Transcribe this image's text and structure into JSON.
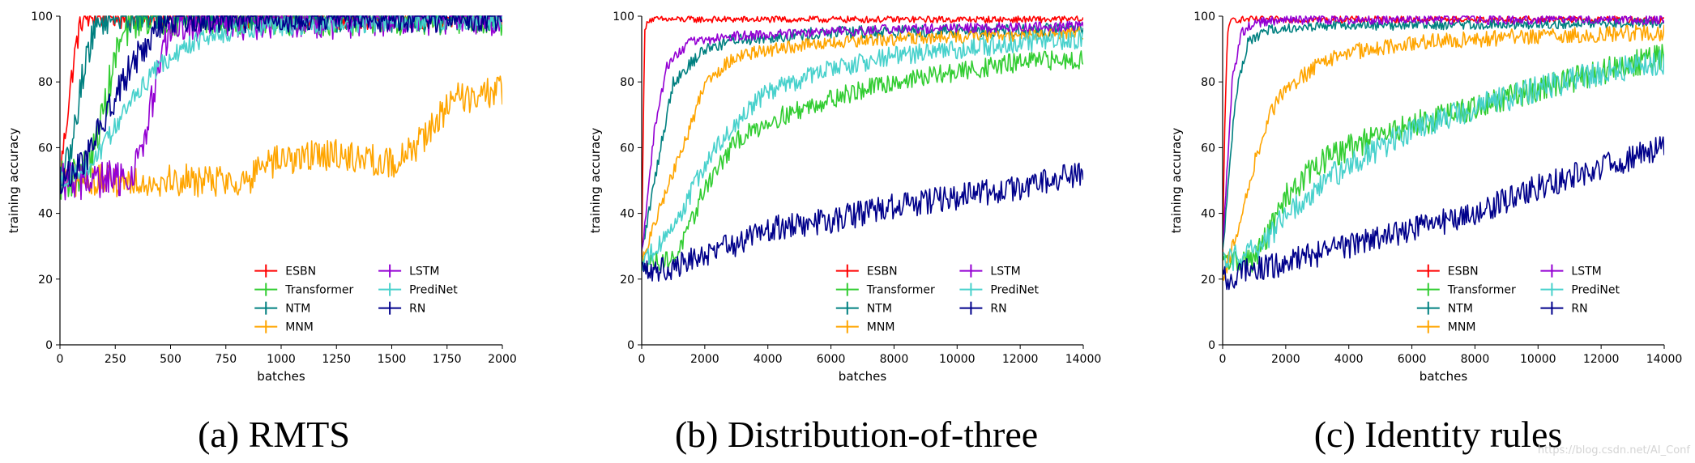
{
  "figure": {
    "watermark": "https://blog.csdn.net/AI_Conf"
  },
  "chart_data": [
    {
      "type": "line",
      "caption": "(a) RMTS",
      "xlabel": "batches",
      "ylabel": "training accuracy",
      "xlim": [
        0,
        2000
      ],
      "ylim": [
        0,
        100
      ],
      "xticks": [
        0,
        250,
        500,
        750,
        1000,
        1250,
        1500,
        1750,
        2000
      ],
      "yticks": [
        0,
        20,
        40,
        60,
        80,
        100
      ],
      "legend": {
        "placement": "bottom-right",
        "columns": 2,
        "entries": [
          "ESBN",
          "Transformer",
          "NTM",
          "MNM",
          "LSTM",
          "PrediNet",
          "RN"
        ]
      },
      "series": [
        {
          "name": "ESBN",
          "color": "#ff0000",
          "noise": 4,
          "x": [
            0,
            25,
            50,
            75,
            100,
            150,
            2000
          ],
          "y": [
            52,
            65,
            80,
            92,
            99,
            100,
            100
          ]
        },
        {
          "name": "Transformer",
          "color": "#32cd32",
          "noise": 6,
          "x": [
            0,
            100,
            150,
            200,
            260,
            320,
            360,
            2000
          ],
          "y": [
            50,
            52,
            58,
            72,
            90,
            98,
            100,
            100
          ]
        },
        {
          "name": "NTM",
          "color": "#008080",
          "noise": 5,
          "x": [
            0,
            50,
            80,
            110,
            150,
            190,
            230,
            2000
          ],
          "y": [
            50,
            58,
            72,
            85,
            95,
            99,
            100,
            100
          ]
        },
        {
          "name": "MNM",
          "color": "#ffa500",
          "noise": 5,
          "x": [
            0,
            500,
            850,
            950,
            1050,
            1250,
            1500,
            1600,
            1700,
            1800,
            2000
          ],
          "y": [
            50,
            50,
            50,
            55,
            57,
            58,
            55,
            60,
            68,
            75,
            77
          ]
        },
        {
          "name": "LSTM",
          "color": "#9400d3",
          "noise": 6,
          "x": [
            0,
            300,
            380,
            420,
            470,
            520,
            2000
          ],
          "y": [
            50,
            50,
            60,
            75,
            90,
            98,
            100
          ]
        },
        {
          "name": "PrediNet",
          "color": "#48d1cc",
          "noise": 3,
          "x": [
            0,
            150,
            300,
            450,
            600,
            800,
            1000,
            1400,
            2000
          ],
          "y": [
            50,
            55,
            72,
            85,
            92,
            96,
            97,
            98,
            99
          ]
        },
        {
          "name": "RN",
          "color": "#00008b",
          "noise": 5,
          "x": [
            0,
            100,
            200,
            300,
            400,
            450,
            500,
            2000
          ],
          "y": [
            50,
            55,
            68,
            82,
            93,
            98,
            100,
            100
          ]
        }
      ]
    },
    {
      "type": "line",
      "caption": "(b) Distribution-of-three",
      "xlabel": "batches",
      "ylabel": "training accuracy",
      "xlim": [
        0,
        14000
      ],
      "ylim": [
        0,
        100
      ],
      "xticks": [
        0,
        2000,
        4000,
        6000,
        8000,
        10000,
        12000,
        14000
      ],
      "yticks": [
        0,
        20,
        40,
        60,
        80,
        100
      ],
      "legend": {
        "placement": "bottom-right",
        "columns": 2,
        "entries": [
          "ESBN",
          "Transformer",
          "NTM",
          "MNM",
          "LSTM",
          "PrediNet",
          "RN"
        ]
      },
      "series": [
        {
          "name": "ESBN",
          "color": "#ff0000",
          "noise": 1,
          "x": [
            0,
            50,
            100,
            200,
            14000
          ],
          "y": [
            25,
            70,
            95,
            99,
            99
          ]
        },
        {
          "name": "Transformer",
          "color": "#32cd32",
          "noise": 3,
          "x": [
            0,
            1000,
            1500,
            2000,
            3000,
            4000,
            6000,
            8000,
            10000,
            12000,
            14000
          ],
          "y": [
            25,
            26,
            35,
            48,
            62,
            68,
            75,
            80,
            83,
            86,
            87
          ]
        },
        {
          "name": "NTM",
          "color": "#008080",
          "noise": 2,
          "x": [
            0,
            500,
            1000,
            2000,
            3000,
            6000,
            14000
          ],
          "y": [
            28,
            55,
            80,
            90,
            93,
            95,
            96
          ]
        },
        {
          "name": "MNM",
          "color": "#ffa500",
          "noise": 2,
          "x": [
            0,
            700,
            1500,
            2000,
            3000,
            5000,
            8000,
            14000
          ],
          "y": [
            25,
            45,
            65,
            80,
            88,
            91,
            93,
            95
          ]
        },
        {
          "name": "LSTM",
          "color": "#9400d3",
          "noise": 1.5,
          "x": [
            0,
            400,
            800,
            1500,
            3000,
            8000,
            14000
          ],
          "y": [
            28,
            65,
            85,
            92,
            94,
            96,
            97
          ]
        },
        {
          "name": "PrediNet",
          "color": "#48d1cc",
          "noise": 3,
          "x": [
            0,
            1000,
            2000,
            3000,
            4000,
            6000,
            8000,
            10000,
            12000,
            14000
          ],
          "y": [
            25,
            35,
            55,
            68,
            77,
            84,
            88,
            90,
            92,
            93
          ]
        },
        {
          "name": "RN",
          "color": "#00008b",
          "noise": 4,
          "x": [
            0,
            1000,
            2000,
            4000,
            6000,
            8000,
            10000,
            12000,
            14000
          ],
          "y": [
            22,
            24,
            27,
            35,
            38,
            42,
            45,
            48,
            52
          ]
        }
      ]
    },
    {
      "type": "line",
      "caption": "(c) Identity rules",
      "xlabel": "batches",
      "ylabel": "training accuracy",
      "xlim": [
        0,
        14000
      ],
      "ylim": [
        0,
        100
      ],
      "xticks": [
        0,
        2000,
        4000,
        6000,
        8000,
        10000,
        12000,
        14000
      ],
      "yticks": [
        0,
        20,
        40,
        60,
        80,
        100
      ],
      "legend": {
        "placement": "bottom-right",
        "columns": 2,
        "entries": [
          "ESBN",
          "Transformer",
          "NTM",
          "MNM",
          "LSTM",
          "PrediNet",
          "RN"
        ]
      },
      "series": [
        {
          "name": "ESBN",
          "color": "#ff0000",
          "noise": 1,
          "x": [
            0,
            50,
            150,
            300,
            14000
          ],
          "y": [
            25,
            60,
            95,
            99,
            99
          ]
        },
        {
          "name": "Transformer",
          "color": "#32cd32",
          "noise": 4,
          "x": [
            0,
            1000,
            1500,
            2000,
            3000,
            4000,
            6000,
            8000,
            10000,
            12000,
            14000
          ],
          "y": [
            25,
            26,
            35,
            45,
            55,
            60,
            67,
            72,
            78,
            83,
            88
          ]
        },
        {
          "name": "NTM",
          "color": "#008080",
          "noise": 1.5,
          "x": [
            0,
            400,
            800,
            1500,
            3000,
            14000
          ],
          "y": [
            28,
            75,
            92,
            96,
            97,
            98
          ]
        },
        {
          "name": "MNM",
          "color": "#ffa500",
          "noise": 2.5,
          "x": [
            0,
            500,
            1000,
            1500,
            2000,
            3000,
            4000,
            6000,
            8000,
            10000,
            14000
          ],
          "y": [
            20,
            35,
            55,
            70,
            78,
            85,
            89,
            92,
            93,
            94,
            95
          ]
        },
        {
          "name": "LSTM",
          "color": "#9400d3",
          "noise": 1.5,
          "x": [
            0,
            300,
            600,
            1000,
            2000,
            14000
          ],
          "y": [
            30,
            80,
            95,
            98,
            99,
            99
          ]
        },
        {
          "name": "PrediNet",
          "color": "#48d1cc",
          "noise": 4,
          "x": [
            0,
            800,
            1500,
            2000,
            3000,
            4000,
            6000,
            8000,
            10000,
            12000,
            14000
          ],
          "y": [
            25,
            28,
            33,
            40,
            48,
            55,
            65,
            72,
            78,
            83,
            86
          ]
        },
        {
          "name": "RN",
          "color": "#00008b",
          "noise": 4,
          "x": [
            0,
            1000,
            2000,
            4000,
            6000,
            8000,
            10000,
            12000,
            14000
          ],
          "y": [
            20,
            23,
            25,
            30,
            35,
            40,
            48,
            54,
            60
          ]
        }
      ]
    }
  ]
}
